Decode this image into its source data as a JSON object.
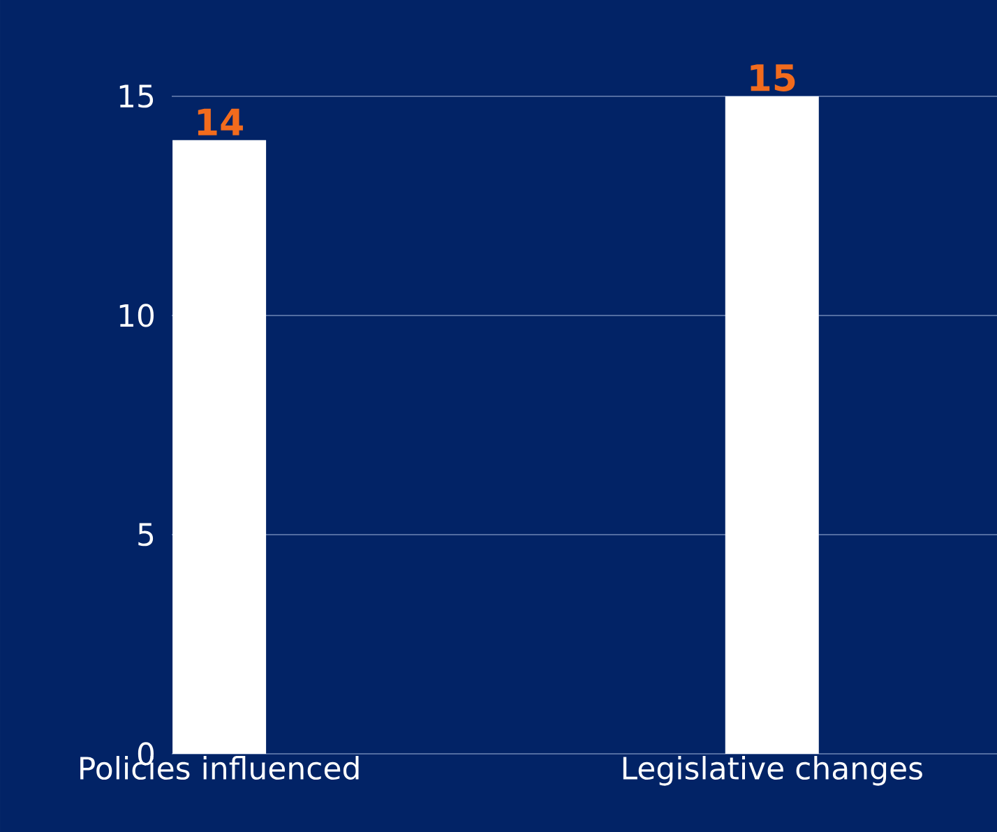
{
  "chart_data": {
    "type": "bar",
    "categories": [
      "Policies influenced",
      "Legislative changes"
    ],
    "values": [
      14,
      15
    ],
    "color": "#ffffff",
    "ylim": [
      0,
      15
    ],
    "yticks": [
      0,
      5,
      10,
      15
    ],
    "grid": "y",
    "data_labels": true
  }
}
